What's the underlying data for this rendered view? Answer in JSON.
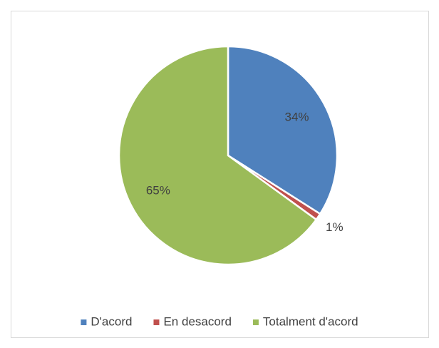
{
  "chart_data": {
    "type": "pie",
    "categories": [
      "D'acord",
      "En desacord",
      "Totalment d'acord"
    ],
    "values": [
      34,
      1,
      65
    ],
    "value_labels": [
      "34%",
      "1%",
      "65%"
    ],
    "colors": [
      "#4f81bd",
      "#c0504d",
      "#9bbb59"
    ],
    "legend": "bottom"
  }
}
